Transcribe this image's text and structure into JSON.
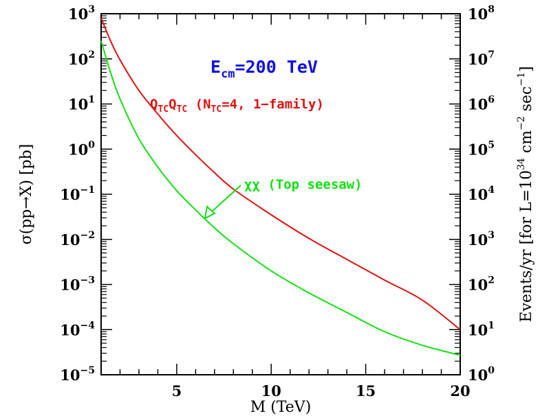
{
  "chart_data": {
    "type": "line",
    "xlabel": "M (TeV)",
    "ylabel_left": "σ(pp→X) [pb]",
    "ylabel_right": "Events/yr [for L=10^34 cm^-2 sec^-1]",
    "xlim": [
      1,
      20
    ],
    "ylim_left": [
      1e-05,
      1000
    ],
    "ylim_right": [
      1,
      100000000.0
    ],
    "yscale": "log",
    "grid": false,
    "x_ticks": [
      "5",
      "10",
      "15",
      "20"
    ],
    "y_left_ticks": [
      "10^-5",
      "10^-4",
      "10^-3",
      "10^-2",
      "10^-1",
      "10^0",
      "10^1",
      "10^2",
      "10^3"
    ],
    "y_right_ticks": [
      "10^0",
      "10^1",
      "10^2",
      "10^3",
      "10^4",
      "10^5",
      "10^6",
      "10^7",
      "10^8"
    ],
    "annotations": {
      "energy": "E_cm=200 TeV",
      "energy_color": "#1010e0",
      "qtc": "Q_TC Q_TC (N_TC=4, 1-family)",
      "qtc_color": "#e01010",
      "chi": "χχ (Top seesaw)",
      "chi_color": "#10e010"
    },
    "series": [
      {
        "name": "Q_TC Q_TC (N_TC=4, 1-family)",
        "color": "#e01010",
        "x": [
          1.0,
          1.5,
          2.0,
          3.0,
          4.0,
          5.0,
          6.0,
          7.0,
          8.0,
          10.0,
          12.0,
          14.0,
          16.0,
          18.0,
          20.0
        ],
        "y": [
          800,
          250,
          95,
          20,
          6.0,
          2.0,
          0.75,
          0.3,
          0.13,
          0.035,
          0.0105,
          0.0036,
          0.00125,
          0.00045,
          0.0001
        ]
      },
      {
        "name": "χχ (Top seesaw)",
        "color": "#10e010",
        "x": [
          1.0,
          1.5,
          2.0,
          3.0,
          4.0,
          5.0,
          6.0,
          7.0,
          8.0,
          10.0,
          12.0,
          14.0,
          16.0,
          18.0,
          20.0
        ],
        "y": [
          250,
          50,
          13,
          1.7,
          0.4,
          0.12,
          0.045,
          0.018,
          0.008,
          0.002,
          0.00065,
          0.00024,
          9e-05,
          4.5e-05,
          2.7e-05
        ]
      }
    ]
  }
}
